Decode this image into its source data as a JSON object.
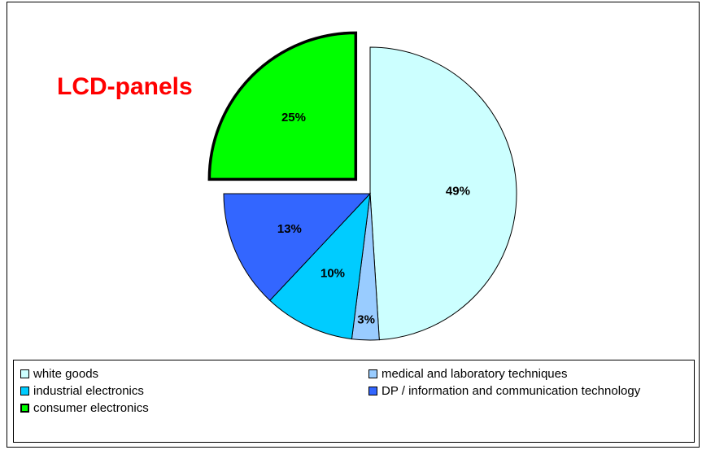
{
  "chart_data": {
    "type": "pie",
    "title": "LCD-panels",
    "slices": [
      {
        "label": "white goods",
        "value": 49,
        "display": "49%",
        "color": "#ccffff",
        "exploded": false
      },
      {
        "label": "medical and laboratory techniques",
        "value": 3,
        "display": "3%",
        "color": "#99ccff",
        "exploded": false
      },
      {
        "label": "industrial electronics",
        "value": 10,
        "display": "10%",
        "color": "#00ccff",
        "exploded": false
      },
      {
        "label": "DP / information and communication technology",
        "value": 13,
        "display": "13%",
        "color": "#3366ff",
        "exploded": false
      },
      {
        "label": "consumer electronics",
        "value": 25,
        "display": "25%",
        "color": "#00ff00",
        "exploded": true
      }
    ],
    "legend_position": "bottom"
  }
}
